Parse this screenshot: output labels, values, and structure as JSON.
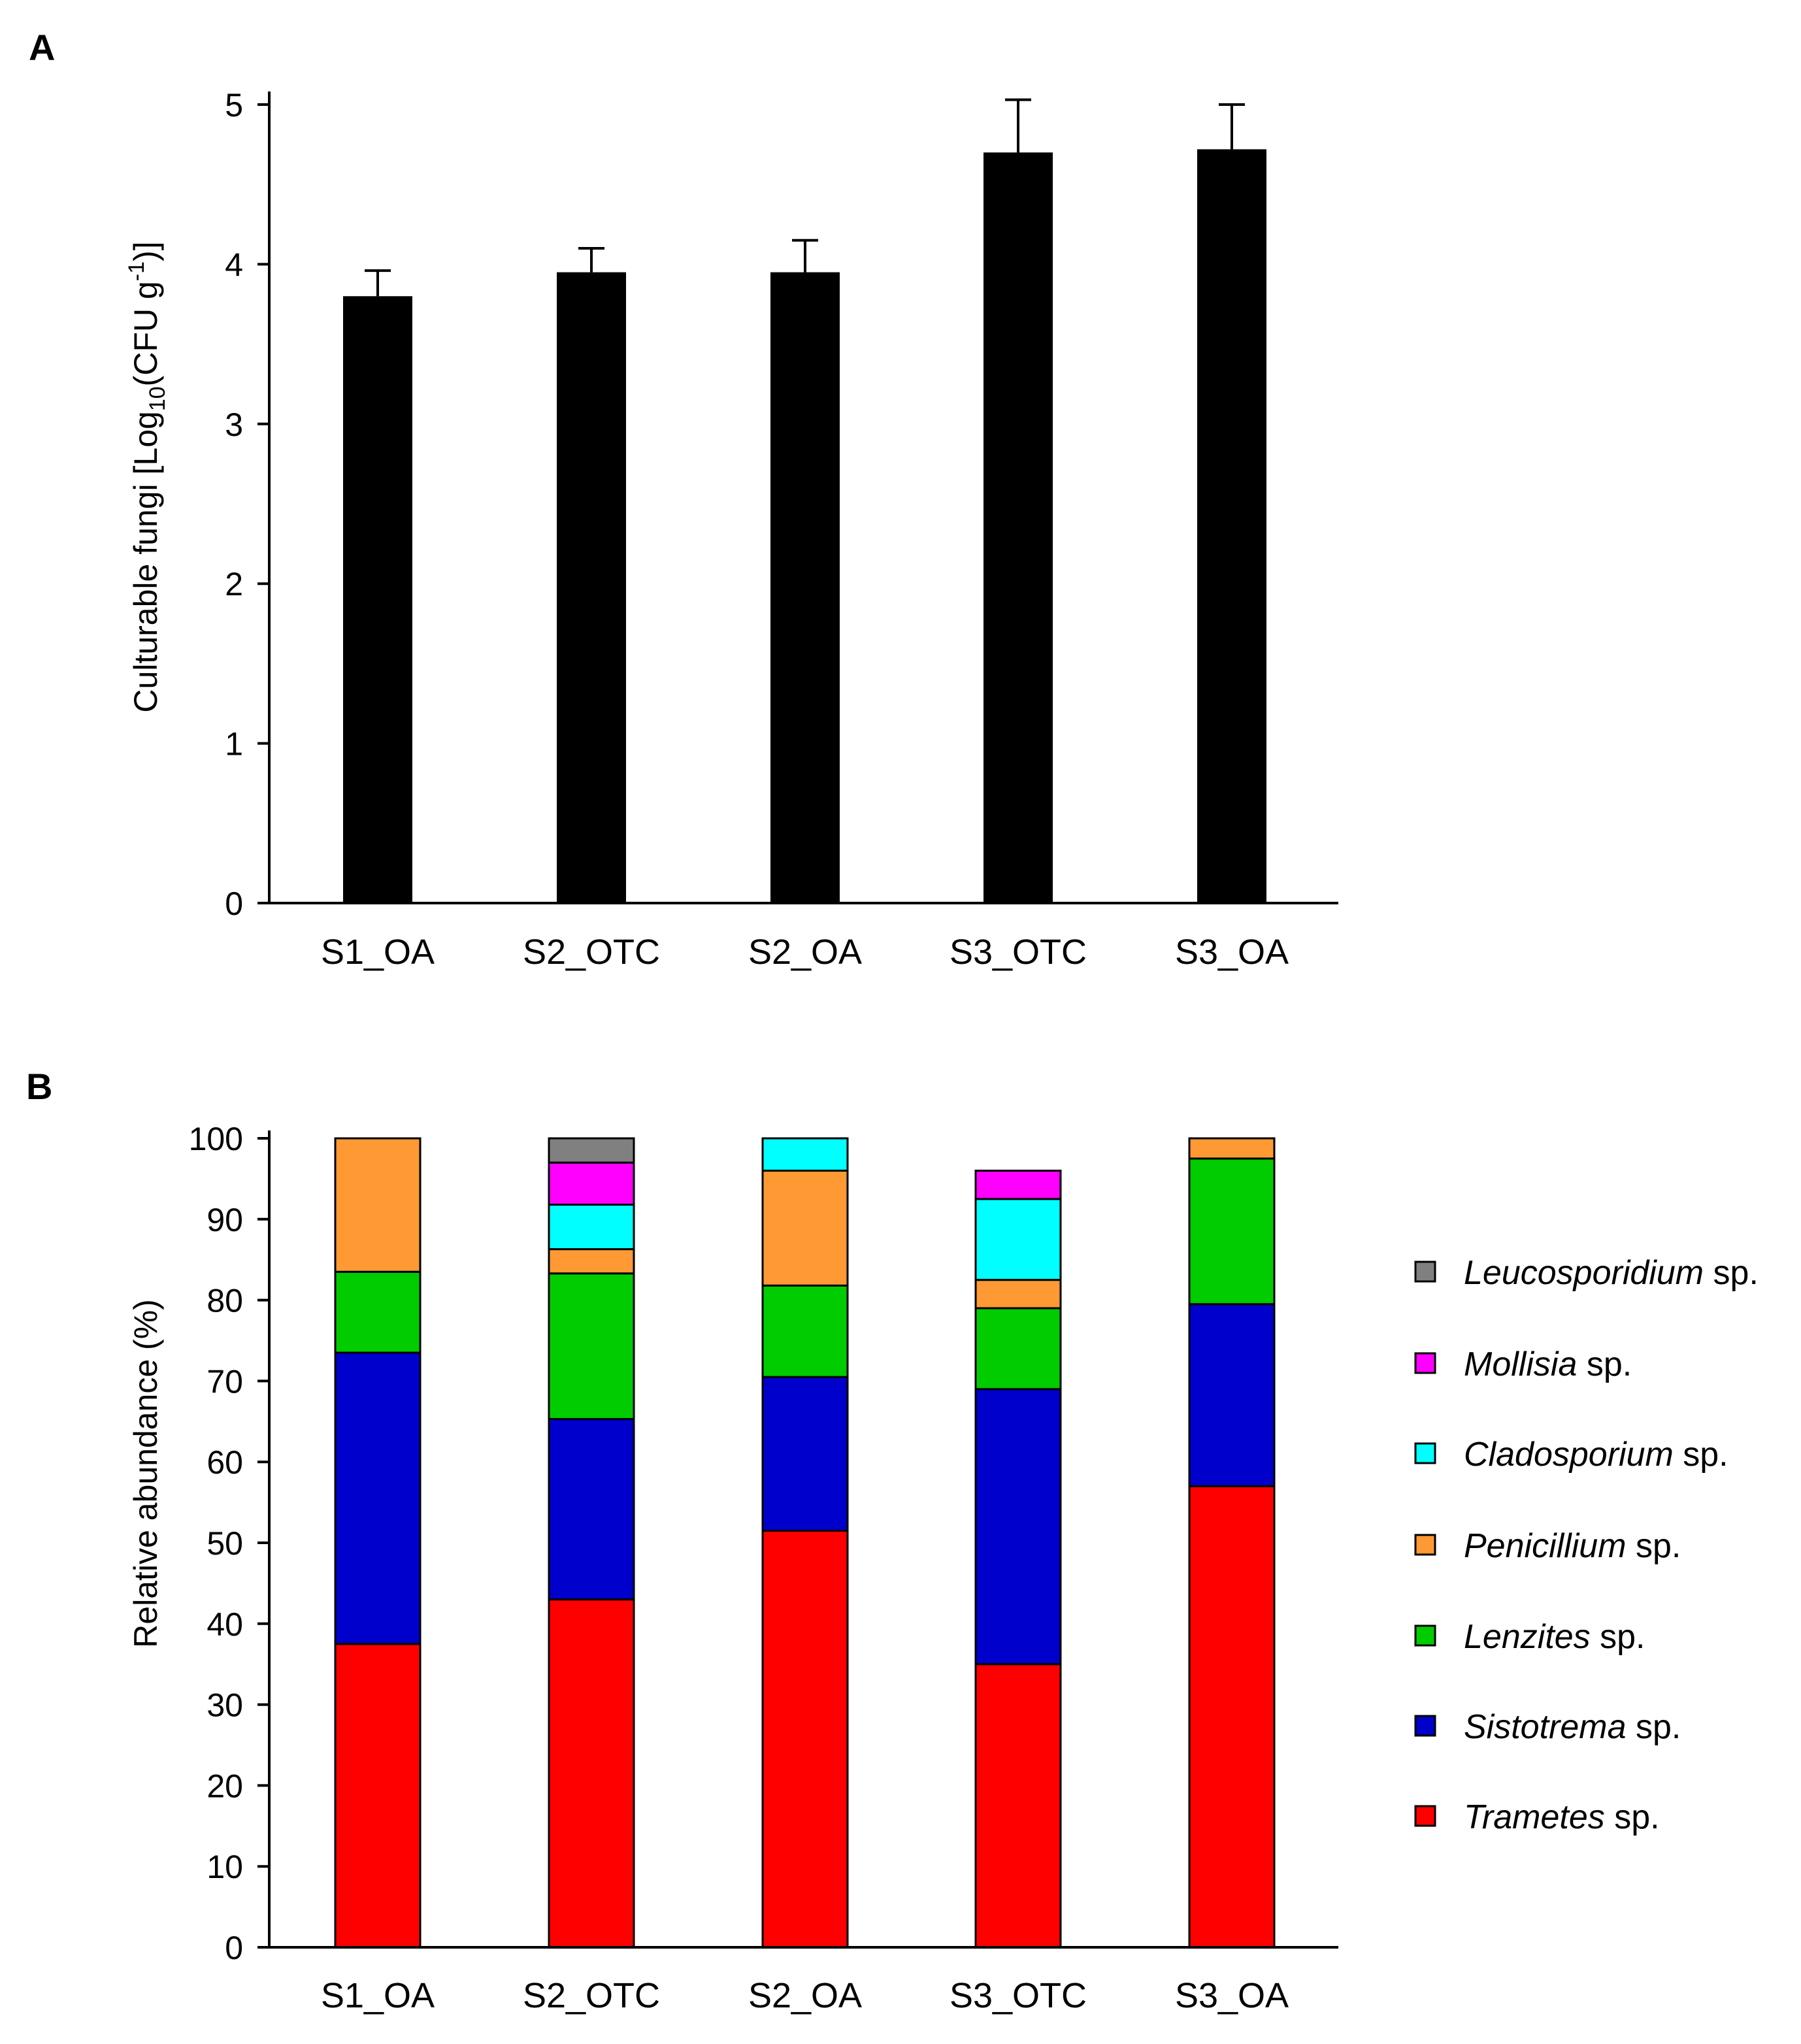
{
  "chart_data": [
    {
      "panel_label": "A",
      "type": "bar",
      "categories": [
        "S1_OA",
        "S2_OTC",
        "S2_OA",
        "S3_OTC",
        "S3_OA"
      ],
      "values": [
        3.8,
        3.95,
        3.95,
        4.7,
        4.72
      ],
      "error_plus": [
        0.16,
        0.15,
        0.2,
        0.33,
        0.28
      ],
      "ylabel_parts": {
        "pre": "Culturable fungi [Log",
        "sub": "10",
        "mid": "(CFU g",
        "sup": "-1",
        "post": ")]"
      },
      "ylim": [
        0,
        5
      ],
      "yticks": [
        0,
        1,
        2,
        3,
        4,
        5
      ],
      "bar_color": "#000000"
    },
    {
      "panel_label": "B",
      "type": "stacked_bar",
      "categories": [
        "S1_OA",
        "S2_OTC",
        "S2_OA",
        "S3_OTC",
        "S3_OA"
      ],
      "ylabel": "Relative abundance (%)",
      "ylim": [
        0,
        100
      ],
      "yticks": [
        0,
        10,
        20,
        30,
        40,
        50,
        60,
        70,
        80,
        90,
        100
      ],
      "series": [
        {
          "name": "Trametes",
          "suffix": " sp.",
          "color": "#ff0000",
          "values": [
            37.5,
            43,
            51.5,
            35,
            57
          ]
        },
        {
          "name": "Sistotrema",
          "suffix": " sp.",
          "color": "#0000cc",
          "values": [
            36,
            22.3,
            19,
            34,
            22.5
          ]
        },
        {
          "name": "Lenzites",
          "suffix": " sp.",
          "color": "#00cc00",
          "values": [
            10,
            18,
            11.3,
            10,
            18
          ]
        },
        {
          "name": "Penicillium",
          "suffix": " sp.",
          "color": "#ff9933",
          "values": [
            16.5,
            3,
            14.2,
            3.5,
            2.5
          ]
        },
        {
          "name": "Cladosporium",
          "suffix": " sp.",
          "color": "#00ffff",
          "values": [
            0,
            5.5,
            4,
            10,
            0
          ]
        },
        {
          "name": "Mollisia",
          "suffix": " sp.",
          "color": "#ff00ff",
          "values": [
            0,
            5.2,
            0,
            3.5,
            0
          ]
        },
        {
          "name": "Leucosporidium",
          "suffix": " sp.",
          "color": "#808080",
          "values": [
            0,
            3,
            0,
            0,
            0
          ]
        }
      ],
      "legend_position": "right"
    }
  ]
}
